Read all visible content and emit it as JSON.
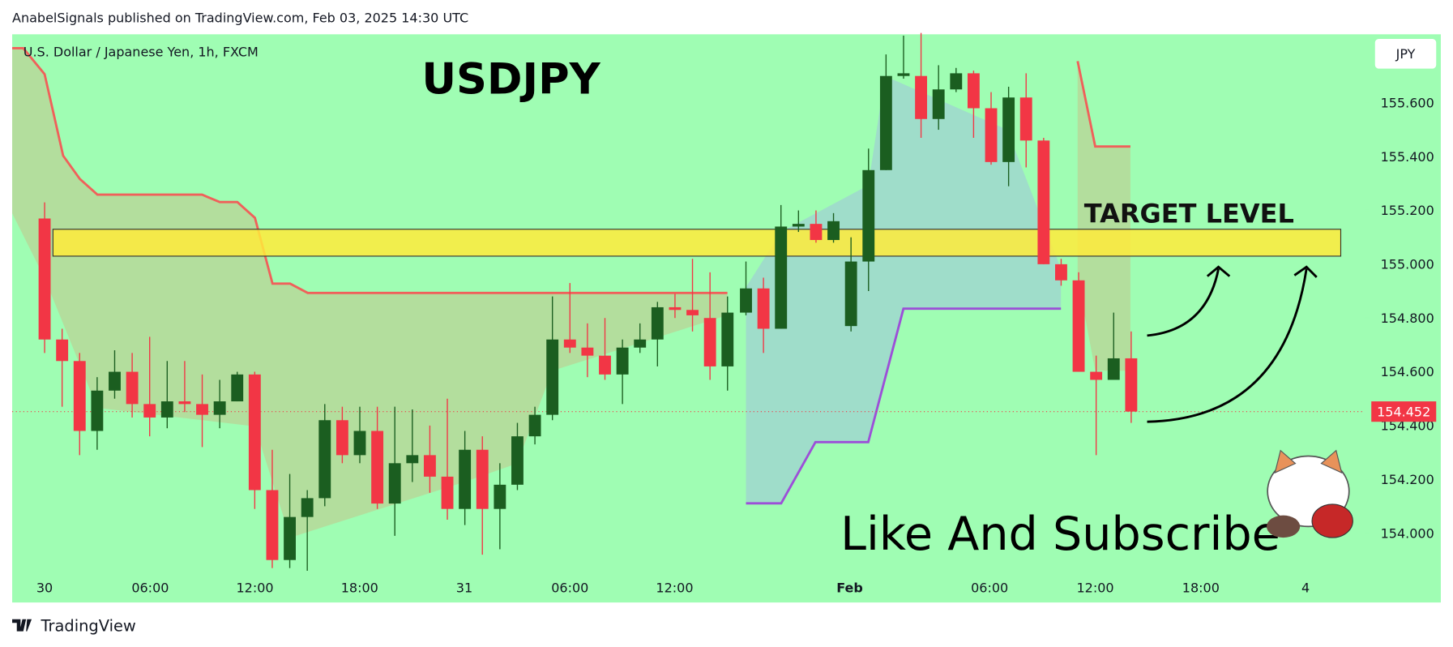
{
  "header": "AnabelSignals published on TradingView.com, Feb 03, 2025 14:30 UTC",
  "footer": "TradingView",
  "chart_data": {
    "type": "candlestick",
    "title": "USDJPY",
    "subtitle": "U.S. Dollar / Japanese Yen, 1h, FXCM",
    "currency": "JPY",
    "annotation": "Like And Subscribe",
    "target_zone": {
      "label": "TARGET LEVEL",
      "range": [
        155.03,
        155.13
      ],
      "color": "#ffeb3b"
    },
    "last_price": 154.452,
    "up_color": "#1b5e20",
    "down_color": "#f23645",
    "x_tick_labels": [
      "30",
      "06:00",
      "12:00",
      "18:00",
      "31",
      "06:00",
      "12:00",
      "Feb",
      "06:00",
      "12:00",
      "18:00",
      "4"
    ],
    "open": [
      155.17,
      154.72,
      154.64,
      154.38,
      154.53,
      154.6,
      154.48,
      154.43,
      154.49,
      154.48,
      154.44,
      154.49,
      154.59,
      154.16,
      153.9,
      154.06,
      154.13,
      154.42,
      154.29,
      154.38,
      154.11,
      154.26,
      154.29,
      154.21,
      154.09,
      154.31,
      154.09,
      154.18,
      154.36,
      154.44,
      154.72,
      154.69,
      154.66,
      154.59,
      154.69,
      154.72,
      154.84,
      154.83,
      154.8,
      154.62,
      154.82,
      154.91,
      154.76,
      155.14,
      155.15,
      155.09,
      154.77,
      155.01,
      155.35,
      155.7,
      155.7,
      155.54,
      155.65,
      155.71,
      155.58,
      155.38,
      155.62,
      155.46,
      155.0,
      154.94,
      154.6,
      154.57,
      154.65
    ],
    "high": [
      155.23,
      154.76,
      154.67,
      154.58,
      154.68,
      154.67,
      154.73,
      154.64,
      154.64,
      154.59,
      154.57,
      154.6,
      154.6,
      154.31,
      154.22,
      154.16,
      154.48,
      154.47,
      154.47,
      154.47,
      154.47,
      154.46,
      154.4,
      154.5,
      154.38,
      154.36,
      154.26,
      154.41,
      154.47,
      154.88,
      154.93,
      154.78,
      154.8,
      154.72,
      154.78,
      154.86,
      154.89,
      155.02,
      154.97,
      154.88,
      155.01,
      154.95,
      155.22,
      155.2,
      155.2,
      155.19,
      155.1,
      155.43,
      155.78,
      155.85,
      155.86,
      155.74,
      155.73,
      155.72,
      155.64,
      155.66,
      155.71,
      155.47,
      155.02,
      154.97,
      154.66,
      154.82,
      154.75
    ],
    "low": [
      154.67,
      154.47,
      154.29,
      154.31,
      154.5,
      154.43,
      154.36,
      154.39,
      154.45,
      154.32,
      154.39,
      154.49,
      154.09,
      153.87,
      153.87,
      153.86,
      154.1,
      154.26,
      154.26,
      154.09,
      153.99,
      154.19,
      154.15,
      154.05,
      154.03,
      153.92,
      153.94,
      154.16,
      154.33,
      154.42,
      154.67,
      154.58,
      154.57,
      154.48,
      154.67,
      154.62,
      154.8,
      154.75,
      154.57,
      154.53,
      154.81,
      154.67,
      154.76,
      155.12,
      155.08,
      155.08,
      154.75,
      154.9,
      155.35,
      155.69,
      155.47,
      155.5,
      155.64,
      155.47,
      155.37,
      155.29,
      155.36,
      155.0,
      154.92,
      154.6,
      154.29,
      154.57,
      154.41
    ],
    "close": [
      154.72,
      154.64,
      154.38,
      154.53,
      154.6,
      154.48,
      154.43,
      154.49,
      154.48,
      154.44,
      154.49,
      154.59,
      154.16,
      153.9,
      154.06,
      154.13,
      154.42,
      154.29,
      154.38,
      154.11,
      154.26,
      154.29,
      154.21,
      154.09,
      154.31,
      154.09,
      154.18,
      154.36,
      154.44,
      154.72,
      154.69,
      154.66,
      154.59,
      154.69,
      154.72,
      154.84,
      154.83,
      154.81,
      154.62,
      154.82,
      154.91,
      154.76,
      155.14,
      155.15,
      155.09,
      155.16,
      155.01,
      155.35,
      155.7,
      155.71,
      155.54,
      155.65,
      155.71,
      155.58,
      155.38,
      155.62,
      155.46,
      155.0,
      154.94,
      154.6,
      154.57,
      154.65,
      154.452
    ],
    "ylim": [
      153.742,
      155.855
    ],
    "yticks": [
      {
        "value": 154.0,
        "label": "154.000"
      },
      {
        "value": 154.2,
        "label": "154.200"
      },
      {
        "value": 154.4,
        "label": "154.400"
      },
      {
        "value": 154.6,
        "label": "154.600"
      },
      {
        "value": 154.8,
        "label": "154.800"
      },
      {
        "value": 155.0,
        "label": "155.000"
      },
      {
        "value": 155.2,
        "label": "155.200"
      },
      {
        "value": 155.4,
        "label": "155.400"
      },
      {
        "value": 155.6,
        "label": "155.600"
      }
    ]
  }
}
